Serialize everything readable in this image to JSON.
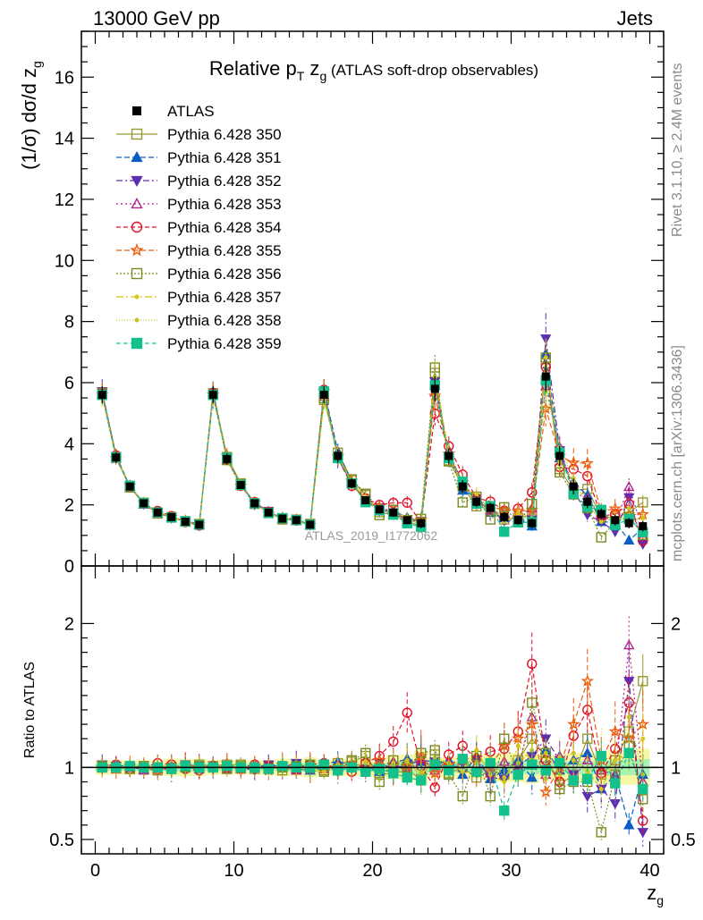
{
  "header": {
    "left": "13000 GeV pp",
    "right": "Jets"
  },
  "side_labels": {
    "rivet": "Rivet 3.1.10, ≥ 2.4M events",
    "mcplots": "mcplots.cern.ch [arXiv:1306.3436]"
  },
  "chart_data": [
    {
      "type": "line",
      "panel": "main",
      "title": "Relative pT zg (ATLAS soft-drop observables)",
      "title_parts": {
        "main": "Relative p",
        "sub1": "T",
        "mid": " z",
        "sub2": "g",
        "tail": " (ATLAS soft-drop observables)"
      },
      "ylabel": "(1/σ) dσ/d z",
      "ylabel_sub": "g",
      "xlim": [
        -1,
        41
      ],
      "ylim": [
        0,
        17.5
      ],
      "yticks": [
        0,
        2,
        4,
        6,
        8,
        10,
        12,
        14,
        16
      ],
      "watermark": "ATLAS_2019_I1772062",
      "x": [
        0.5,
        1.5,
        2.5,
        3.5,
        4.5,
        5.5,
        6.5,
        7.5,
        8.5,
        9.5,
        10.5,
        11.5,
        12.5,
        13.5,
        14.5,
        15.5,
        16.5,
        17.5,
        18.5,
        19.5,
        20.5,
        21.5,
        22.5,
        23.5,
        24.5,
        25.5,
        26.5,
        27.5,
        28.5,
        29.5,
        30.5,
        31.5,
        32.5,
        33.5,
        34.5,
        35.5,
        36.5,
        37.5,
        38.5,
        39.5
      ],
      "atlas": {
        "name": "ATLAS",
        "values": [
          5.6,
          3.55,
          2.6,
          2.05,
          1.75,
          1.6,
          1.45,
          1.35,
          5.6,
          3.5,
          2.65,
          2.05,
          1.75,
          1.55,
          1.5,
          1.35,
          5.6,
          3.6,
          2.7,
          2.15,
          1.85,
          1.75,
          1.5,
          1.4,
          5.8,
          3.6,
          2.6,
          2.1,
          1.9,
          1.6,
          1.5,
          1.4,
          6.2,
          3.6,
          2.6,
          2.1,
          1.7,
          1.5,
          1.4,
          1.3
        ],
        "rel_unc": [
          0.05,
          0.05,
          0.05,
          0.05,
          0.05,
          0.06,
          0.06,
          0.06,
          0.05,
          0.05,
          0.05,
          0.05,
          0.05,
          0.06,
          0.06,
          0.07,
          0.05,
          0.06,
          0.06,
          0.06,
          0.07,
          0.08,
          0.09,
          0.12,
          0.07,
          0.07,
          0.08,
          0.08,
          0.09,
          0.1,
          0.1,
          0.11,
          0.08,
          0.09,
          0.1,
          0.1,
          0.11,
          0.12,
          0.12,
          0.13
        ]
      },
      "series": [
        {
          "name": "Pythia 6.428 350",
          "color": "#999933",
          "marker": "square-open",
          "dash": "",
          "ratio": [
            1.0,
            1.0,
            0.99,
            1.0,
            0.98,
            1.0,
            1.01,
            1.02,
            1.01,
            1.02,
            1.02,
            0.99,
            1.01,
            0.98,
            1.0,
            1.01,
            0.97,
            1.03,
            1.04,
            1.08,
            0.95,
            0.96,
            0.98,
            0.92,
            1.09,
            0.96,
            1.0,
            0.93,
            0.98,
            0.95,
            1.05,
            1.2,
            1.07,
            0.88,
            0.95,
            1.2,
            0.95,
            1.05,
            1.25,
            1.6
          ]
        },
        {
          "name": "Pythia 6.428 351",
          "color": "#0a5dc6",
          "marker": "triangle-up",
          "dash": "6,3",
          "ratio": [
            1.01,
            1.02,
            1.0,
            0.99,
            1.0,
            1.01,
            1.0,
            0.99,
            1.02,
            1.01,
            0.99,
            1.0,
            1.02,
            1.01,
            0.99,
            0.98,
            1.03,
            1.04,
            1.02,
            1.01,
            0.97,
            1.03,
            1.06,
            1.04,
            1.02,
            1.05,
            0.95,
            1.08,
            0.92,
            0.98,
            1.05,
            0.93,
            1.12,
            0.98,
            1.05,
            1.1,
            0.85,
            0.95,
            0.6,
            0.95
          ]
        },
        {
          "name": "Pythia 6.428 352",
          "color": "#5c2eb2",
          "marker": "triangle-down",
          "dash": "7,3,2,3",
          "ratio": [
            1.02,
            1.01,
            1.0,
            0.99,
            1.0,
            0.98,
            1.02,
            1.01,
            0.99,
            1.01,
            1.0,
            0.98,
            1.02,
            1.0,
            1.03,
            0.99,
            1.02,
            0.97,
            1.01,
            0.98,
            1.03,
            0.99,
            1.02,
            1.05,
            1.04,
            0.98,
            1.03,
            1.05,
            0.93,
            0.92,
            1.01,
            1.08,
            1.2,
            1.05,
            0.95,
            0.8,
            0.85,
            0.75,
            1.6,
            0.55
          ]
        },
        {
          "name": "Pythia 6.428 353",
          "color": "#b3228b",
          "marker": "triangle-up-open",
          "dash": "2,3",
          "ratio": [
            1.0,
            0.99,
            1.01,
            0.98,
            0.99,
            1.0,
            1.01,
            1.0,
            1.01,
            0.99,
            1.0,
            1.02,
            0.99,
            1.01,
            0.98,
            1.0,
            0.99,
            1.02,
            1.0,
            0.99,
            1.01,
            1.04,
            0.97,
            1.06,
            0.98,
            1.03,
            1.05,
            1.02,
            0.96,
            1.04,
            1.01,
            1.35,
            0.95,
            1.08,
            0.93,
            1.05,
            0.98,
            0.95,
            1.85,
            0.9
          ]
        },
        {
          "name": "Pythia 6.428 354",
          "color": "#e20f27",
          "marker": "circle-open",
          "dash": "5,3",
          "ratio": [
            1.01,
            1.02,
            0.99,
            1.0,
            1.03,
            1.02,
            0.99,
            0.98,
            1.01,
            1.0,
            0.99,
            1.02,
            1.01,
            1.0,
            0.99,
            1.02,
            1.03,
            0.98,
            0.97,
            1.03,
            1.08,
            1.18,
            1.38,
            1.01,
            0.86,
            1.09,
            1.15,
            1.06,
            1.11,
            1.13,
            1.25,
            1.72,
            1.05,
            0.9,
            1.22,
            1.4,
            0.96,
            1.13,
            1.45,
            0.63
          ]
        },
        {
          "name": "Pythia 6.428 355",
          "color": "#ec5e0c",
          "marker": "star-open",
          "dash": "6,3",
          "ratio": [
            1.0,
            0.99,
            1.01,
            1.0,
            0.98,
            1.0,
            1.02,
            1.0,
            1.0,
            1.03,
            0.99,
            1.01,
            0.98,
            1.02,
            1.01,
            0.99,
            1.02,
            1.0,
            1.03,
            0.99,
            1.05,
            0.97,
            1.01,
            1.08,
            0.96,
            1.02,
            1.05,
            0.97,
            1.01,
            1.15,
            1.2,
            1.3,
            0.83,
            1.0,
            1.3,
            1.6,
            1.05,
            1.25,
            1.2,
            1.3
          ]
        },
        {
          "name": "Pythia 6.428 356",
          "color": "#7a8b22",
          "marker": "square-open",
          "dash": "2,2",
          "ratio": [
            1.01,
            1.0,
            0.99,
            1.01,
            1.0,
            0.99,
            1.0,
            1.01,
            1.0,
            0.99,
            1.01,
            1.0,
            0.99,
            1.0,
            1.01,
            1.02,
            0.98,
            0.99,
            1.05,
            1.1,
            0.9,
            1.05,
            1.0,
            1.1,
            1.12,
            0.95,
            0.8,
            1.08,
            0.8,
            1.2,
            0.95,
            1.45,
            1.1,
            0.85,
            0.9,
            0.9,
            0.55,
            0.95,
            1.15,
            0.78
          ]
        },
        {
          "name": "Pythia 6.428 357",
          "color": "#d6c517",
          "marker": "small-dot",
          "dash": "8,3,2,3",
          "ratio": [
            0.99,
            1.0,
            1.01,
            0.99,
            1.02,
            1.0,
            0.99,
            1.01,
            0.99,
            1.0,
            1.01,
            0.99,
            1.0,
            1.01,
            1.0,
            0.98,
            0.97,
            1.02,
            0.99,
            1.04,
            0.96,
            1.03,
            1.05,
            0.94,
            1.07,
            1.03,
            0.97,
            1.12,
            0.95,
            0.9,
            1.15,
            1.05,
            1.1,
            0.95,
            1.05,
            0.98,
            0.85,
            1.05,
            1.1,
            1.2
          ]
        },
        {
          "name": "Pythia 6.428 358",
          "color": "#c4c628",
          "marker": "small-dot",
          "dash": "1,2",
          "ratio": [
            1.0,
            1.01,
            1.0,
            1.0,
            0.99,
            1.01,
            1.0,
            0.99,
            1.01,
            1.0,
            1.0,
            1.01,
            1.0,
            0.99,
            1.0,
            1.01,
            1.01,
            0.99,
            1.02,
            1.03,
            0.97,
            1.01,
            1.04,
            0.97,
            1.02,
            0.99,
            1.04,
            1.03,
            1.06,
            0.93,
            1.03,
            1.12,
            0.92,
            1.07,
            1.1,
            0.95,
            1.1,
            0.9,
            1.35,
            0.95
          ]
        },
        {
          "name": "Pythia 6.428 359",
          "color": "#14c08b",
          "marker": "square-filled",
          "dash": "5,3",
          "ratio": [
            1.0,
            1.0,
            1.01,
            1.0,
            1.0,
            0.99,
            1.01,
            1.0,
            1.0,
            1.01,
            1.0,
            1.0,
            0.99,
            1.01,
            1.0,
            1.0,
            1.02,
            0.98,
            1.0,
            0.97,
            0.99,
            0.96,
            0.93,
            0.91,
            1.02,
            0.98,
            1.06,
            0.97,
            1.03,
            0.7,
            0.95,
            1.02,
            0.98,
            1.03,
            0.91,
            0.92,
            1.08,
            0.89,
            1.1,
            0.85
          ]
        }
      ]
    },
    {
      "type": "line",
      "panel": "ratio",
      "ylabel": "Ratio to ATLAS",
      "xlabel": "z",
      "xlabel_sub": "g",
      "xlim": [
        -1,
        41
      ],
      "ylim": [
        0.4,
        2.4
      ],
      "yticks": [
        0.5,
        1,
        2
      ],
      "ytick_labels": [
        "0.5",
        "1",
        "2"
      ],
      "xticks": [
        0,
        10,
        20,
        30,
        40
      ],
      "xtick_labels": [
        "0",
        "10",
        "20",
        "30",
        "40"
      ]
    }
  ]
}
